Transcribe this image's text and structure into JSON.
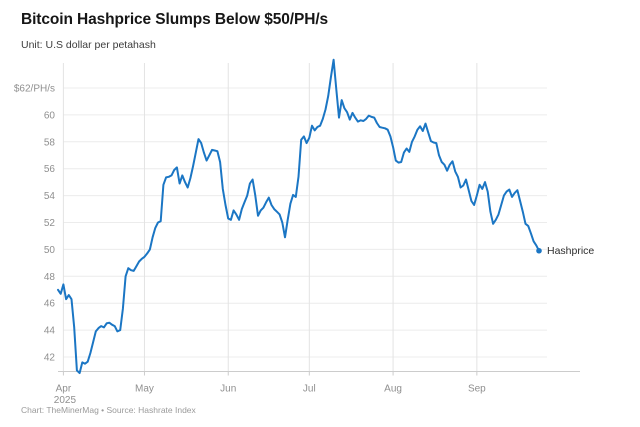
{
  "header": {
    "title": "Bitcoin Hashprice Slumps Below $50/PH/s",
    "subtitle": "Unit: U.S dollar per petahash"
  },
  "footer": {
    "credit": "Chart: TheMinerMag • Source: Hashrate Index"
  },
  "colors": {
    "line": "#1b76c4",
    "grid_horizontal": "#ececec",
    "grid_vertical": "#e3e3e3",
    "baseline": "#cccccc",
    "tick_text": "#8f8f8f",
    "series_label_text": "#2e2e2e"
  },
  "chart_data": {
    "type": "line",
    "title": "Bitcoin Hashprice Slumps Below $50/PH/s",
    "subtitle": "Unit: U.S dollar per petahash",
    "legend_position": "end-of-line",
    "grid": true,
    "y_axis": {
      "ticks": [
        {
          "value": 62,
          "label": "$62/PH/s"
        },
        {
          "value": 60,
          "label": "60"
        },
        {
          "value": 58,
          "label": "58"
        },
        {
          "value": 56,
          "label": "56"
        },
        {
          "value": 54,
          "label": "54"
        },
        {
          "value": 52,
          "label": "52"
        },
        {
          "value": 50,
          "label": "50"
        },
        {
          "value": 48,
          "label": "48"
        },
        {
          "value": 46,
          "label": "46"
        },
        {
          "value": 44,
          "label": "44"
        },
        {
          "value": 42,
          "label": "42"
        }
      ],
      "visible_range": [
        40.9,
        63.9
      ]
    },
    "x_axis": {
      "start_date": "2025-03-30",
      "end_date": "2025-09-24",
      "interval": "daily",
      "month_ticks": [
        {
          "label": "Apr",
          "sublabel": "2025",
          "day_offset": 2
        },
        {
          "label": "May",
          "day_offset": 32
        },
        {
          "label": "Jun",
          "day_offset": 63
        },
        {
          "label": "Jul",
          "day_offset": 93
        },
        {
          "label": "Aug",
          "day_offset": 124
        },
        {
          "label": "Sep",
          "day_offset": 155
        }
      ]
    },
    "series": [
      {
        "name": "Hashprice",
        "unit": "USD per PH/s",
        "values": [
          47.0,
          46.7,
          47.4,
          46.3,
          46.6,
          46.3,
          44.2,
          41.0,
          40.8,
          41.6,
          41.5,
          41.65,
          42.3,
          43.1,
          43.9,
          44.15,
          44.3,
          44.2,
          44.5,
          44.55,
          44.4,
          44.3,
          43.9,
          44.0,
          45.6,
          48.0,
          48.6,
          48.45,
          48.4,
          48.75,
          49.1,
          49.3,
          49.45,
          49.7,
          50.0,
          50.9,
          51.6,
          52.0,
          52.1,
          54.8,
          55.35,
          55.4,
          55.5,
          55.9,
          56.1,
          54.9,
          55.5,
          55.0,
          54.6,
          55.3,
          56.2,
          57.2,
          58.2,
          57.9,
          57.2,
          56.6,
          57.0,
          57.4,
          57.35,
          57.3,
          56.5,
          54.5,
          53.3,
          52.3,
          52.2,
          52.9,
          52.6,
          52.2,
          53.0,
          53.5,
          54.0,
          54.9,
          55.2,
          54.0,
          52.5,
          52.9,
          53.1,
          53.5,
          53.85,
          53.3,
          53.0,
          52.8,
          52.6,
          52.0,
          50.9,
          52.2,
          53.4,
          54.05,
          53.9,
          55.4,
          58.15,
          58.4,
          57.9,
          58.3,
          59.2,
          58.85,
          59.1,
          59.2,
          59.7,
          60.4,
          61.4,
          62.8,
          64.1,
          61.9,
          59.8,
          61.1,
          60.5,
          60.2,
          59.65,
          60.15,
          59.8,
          59.5,
          59.6,
          59.55,
          59.7,
          59.95,
          59.85,
          59.8,
          59.4,
          59.1,
          59.05,
          59.0,
          58.9,
          58.4,
          57.6,
          56.6,
          56.45,
          56.5,
          57.2,
          57.5,
          57.25,
          58.0,
          58.4,
          58.9,
          59.15,
          58.8,
          59.35,
          58.7,
          58.05,
          57.95,
          57.9,
          57.0,
          56.5,
          56.3,
          55.85,
          56.3,
          56.55,
          55.8,
          55.4,
          54.6,
          54.75,
          55.2,
          54.4,
          53.6,
          53.3,
          54.0,
          54.8,
          54.5,
          55.0,
          54.3,
          52.8,
          51.9,
          52.2,
          52.6,
          53.3,
          54.0,
          54.3,
          54.45,
          53.9,
          54.2,
          54.4,
          53.6,
          52.8,
          51.9,
          51.75,
          51.2,
          50.6,
          50.3,
          49.9
        ]
      }
    ],
    "annotations": {
      "end_label": "Hashprice",
      "end_value": 49.9,
      "peak_value": 64.1,
      "min_value": 40.8
    }
  }
}
